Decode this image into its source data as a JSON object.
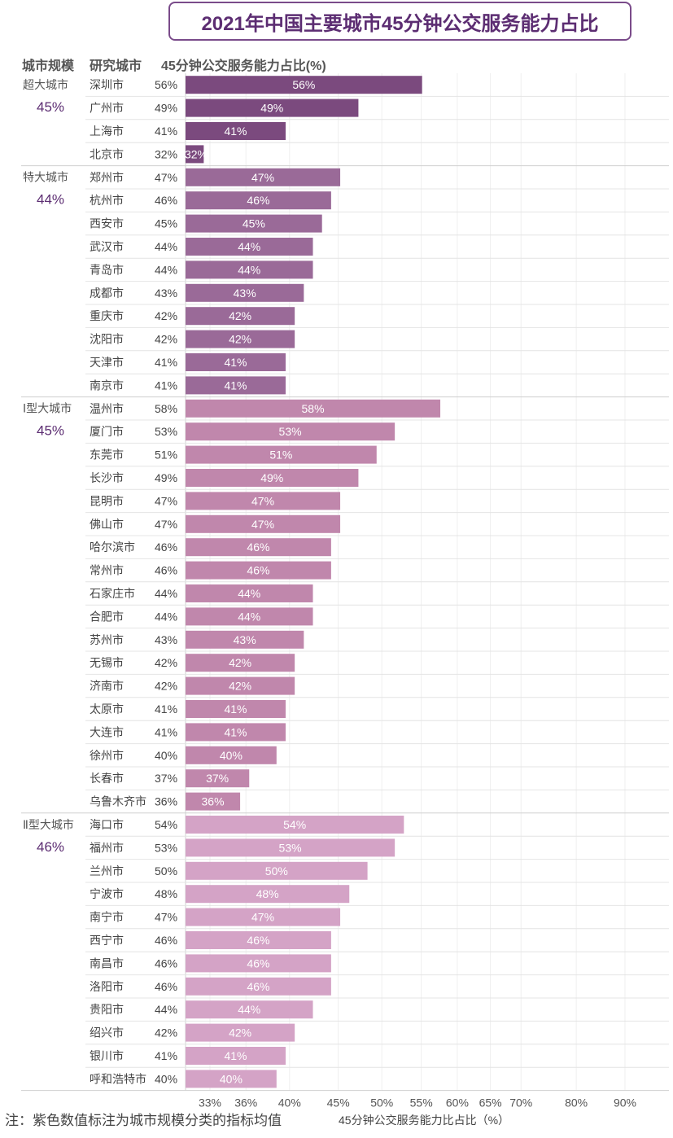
{
  "title": "2021年中国主要城市45分钟公交服务能力占比",
  "headers": {
    "scale": "城市规模",
    "city": "研究城市",
    "value": "45分钟公交服务能力占比(%)"
  },
  "note": "注：紫色数值标注为城市规模分类的指标均值",
  "colors": {
    "超大城市": "#7b4a7e",
    "特大城市": "#9a6a98",
    "Ⅰ型大城市": "#c087ac",
    "Ⅱ型大城市": "#d4a3c6",
    "avg_text": "#5c2d72"
  },
  "chart_data": {
    "type": "bar",
    "orientation": "horizontal",
    "title": "2021年中国主要城市45分钟公交服务能力占比",
    "xlabel": "45分钟公交服务能力比占比（%）",
    "xlim": [
      33,
      90
    ],
    "x_scale": "log",
    "x_ticks": [
      "33%",
      "36%",
      "40%",
      "45%",
      "50%",
      "55%",
      "60%",
      "65%",
      "70%",
      "80%",
      "90%"
    ],
    "grid": true,
    "groups": [
      {
        "name": "超大城市",
        "average": "45%",
        "cities": [
          {
            "city": "深圳市",
            "value": 56
          },
          {
            "city": "广州市",
            "value": 49
          },
          {
            "city": "上海市",
            "value": 41
          },
          {
            "city": "北京市",
            "value": 32
          }
        ]
      },
      {
        "name": "特大城市",
        "average": "44%",
        "cities": [
          {
            "city": "郑州市",
            "value": 47
          },
          {
            "city": "杭州市",
            "value": 46
          },
          {
            "city": "西安市",
            "value": 45
          },
          {
            "city": "武汉市",
            "value": 44
          },
          {
            "city": "青岛市",
            "value": 44
          },
          {
            "city": "成都市",
            "value": 43
          },
          {
            "city": "重庆市",
            "value": 42
          },
          {
            "city": "沈阳市",
            "value": 42
          },
          {
            "city": "天津市",
            "value": 41
          },
          {
            "city": "南京市",
            "value": 41
          }
        ]
      },
      {
        "name": "Ⅰ型大城市",
        "average": "45%",
        "cities": [
          {
            "city": "温州市",
            "value": 58
          },
          {
            "city": "厦门市",
            "value": 53
          },
          {
            "city": "东莞市",
            "value": 51
          },
          {
            "city": "长沙市",
            "value": 49
          },
          {
            "city": "昆明市",
            "value": 47
          },
          {
            "city": "佛山市",
            "value": 47
          },
          {
            "city": "哈尔滨市",
            "value": 46
          },
          {
            "city": "常州市",
            "value": 46
          },
          {
            "city": "石家庄市",
            "value": 44
          },
          {
            "city": "合肥市",
            "value": 44
          },
          {
            "city": "苏州市",
            "value": 43
          },
          {
            "city": "无锡市",
            "value": 42
          },
          {
            "city": "济南市",
            "value": 42
          },
          {
            "city": "太原市",
            "value": 41
          },
          {
            "city": "大连市",
            "value": 41
          },
          {
            "city": "徐州市",
            "value": 40
          },
          {
            "city": "长春市",
            "value": 37
          },
          {
            "city": "乌鲁木齐市",
            "value": 36
          }
        ]
      },
      {
        "name": "Ⅱ型大城市",
        "average": "46%",
        "cities": [
          {
            "city": "海口市",
            "value": 54
          },
          {
            "city": "福州市",
            "value": 53
          },
          {
            "city": "兰州市",
            "value": 50
          },
          {
            "city": "宁波市",
            "value": 48
          },
          {
            "city": "南宁市",
            "value": 47
          },
          {
            "city": "西宁市",
            "value": 46
          },
          {
            "city": "南昌市",
            "value": 46
          },
          {
            "city": "洛阳市",
            "value": 46
          },
          {
            "city": "贵阳市",
            "value": 44
          },
          {
            "city": "绍兴市",
            "value": 42
          },
          {
            "city": "银川市",
            "value": 41
          },
          {
            "city": "呼和浩特市",
            "value": 40
          }
        ]
      }
    ]
  }
}
